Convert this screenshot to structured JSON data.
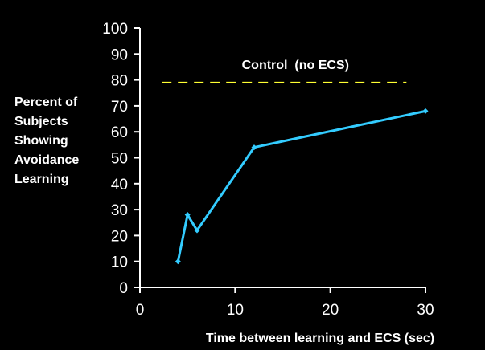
{
  "chart_data": {
    "type": "line",
    "title": "",
    "xlabel": "Time between learning and ECS (sec)",
    "ylabel_lines": [
      "Percent of",
      "Subjects",
      "Showing",
      "Avoidance",
      "Learning"
    ],
    "xlim": [
      0,
      30
    ],
    "ylim": [
      0,
      100
    ],
    "x_ticks": [
      0,
      10,
      20,
      30
    ],
    "y_ticks": [
      0,
      10,
      20,
      30,
      40,
      50,
      60,
      70,
      80,
      90,
      100
    ],
    "grid": false,
    "background_color": "#000000",
    "axis_color": "#ffffff",
    "series": [
      {
        "x": [
          4,
          5,
          6,
          12,
          30
        ],
        "y": [
          10,
          28,
          22,
          54,
          68
        ],
        "color": "#33ccff",
        "marker": "diamond"
      }
    ],
    "reference_lines": [
      {
        "label": "Control  (no ECS)",
        "y": 79,
        "x_range": [
          2.3,
          28
        ],
        "style": "dashed",
        "color": "#ffff33"
      }
    ]
  }
}
